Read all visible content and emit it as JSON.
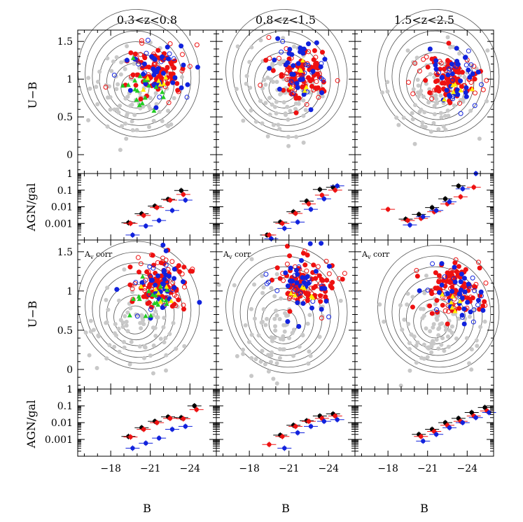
{
  "figure": {
    "column_titles": [
      "0.3<z<0.8",
      "0.8<z<1.5",
      "1.5<z<2.5"
    ],
    "color_top_ylabel": "U−B",
    "ratio_top_ylabel": "AGN/gal",
    "color_bottom_ylabel": "U−B",
    "ratio_bottom_ylabel": "AGN/gal",
    "xlabel": "B",
    "av_corr_label": "A",
    "av_corr_sub": "v",
    "av_corr_suffix": " corr"
  },
  "colors": {
    "black": "#000000",
    "red": "#ee1111",
    "blue": "#1122dd",
    "green": "#22cc22",
    "yellow": "#ffee00",
    "gray": "#c8c8c8",
    "contour": "#555555"
  },
  "chart_data": [
    {
      "type": "scatter",
      "row": "color-top",
      "ylabel": "U−B",
      "xlim": [
        -15.5,
        -26
      ],
      "ylim": [
        -0.25,
        1.65
      ],
      "xticks": [
        -18,
        -21,
        -24
      ],
      "yticks": [
        0,
        0.5,
        1,
        1.5
      ],
      "series": [
        {
          "name": "galaxies (gray)"
        },
        {
          "name": "AGN (red)"
        },
        {
          "name": "AGN (blue)"
        },
        {
          "name": "green"
        },
        {
          "name": "yellow"
        }
      ],
      "panels": [
        {
          "title": "0.3<z<0.8",
          "gal_center": [
            -19.8,
            0.85
          ],
          "agn_center": [
            -21.5,
            1.1
          ]
        },
        {
          "title": "0.8<z<1.5",
          "gal_center": [
            -20.5,
            0.85
          ],
          "agn_center": [
            -22.0,
            1.1
          ]
        },
        {
          "title": "1.5<z<2.5",
          "gal_center": [
            -21.5,
            0.85
          ],
          "agn_center": [
            -22.8,
            1.0
          ]
        }
      ]
    },
    {
      "type": "line",
      "row": "ratio-top",
      "ylabel": "AGN/gal",
      "yscale": "log",
      "xlim": [
        -15.5,
        -26
      ],
      "ylim": [
        0.0001,
        1
      ],
      "ytick_labels": [
        "1",
        "0.1",
        "0.01",
        "0.001"
      ],
      "panels": [
        {
          "x": [
            -19.5,
            -20.5,
            -21.5,
            -22.5,
            -23.5
          ],
          "series": [
            {
              "name": "black",
              "values": [
                0.0011,
                0.0038,
                0.011,
                0.028,
                0.095
              ]
            },
            {
              "name": "red",
              "values": [
                0.001,
                0.003,
                0.009,
                0.025,
                0.055
              ]
            },
            {
              "name": "blue",
              "values": [
                0.0002,
                0.0007,
                0.0015,
                0.006,
                0.025
              ]
            }
          ]
        },
        {
          "x": [
            -19.5,
            -20.5,
            -21.5,
            -22.5,
            -23.5,
            -24.5
          ],
          "series": [
            {
              "name": "black",
              "values": [
                0.0002,
                0.0012,
                0.005,
                0.022,
                0.11,
                0.15
              ]
            },
            {
              "name": "red",
              "values": [
                0.0002,
                0.001,
                0.004,
                0.015,
                0.05,
                0.1
              ]
            },
            {
              "name": "blue",
              "values": [
                0.00012,
                0.0005,
                0.0012,
                0.007,
                0.03,
                0.18
              ]
            }
          ]
        },
        {
          "x": [
            -18.0,
            -19.5,
            -20.5,
            -21.5,
            -22.5,
            -23.5,
            -24.5
          ],
          "series": [
            {
              "name": "black",
              "values": [
                null,
                0.0018,
                0.0035,
                0.009,
                0.03,
                0.18,
                null
              ]
            },
            {
              "name": "red",
              "values": [
                0.007,
                0.0015,
                0.002,
                0.005,
                0.015,
                0.04,
                0.15
              ]
            },
            {
              "name": "blue",
              "values": [
                null,
                0.0008,
                0.0025,
                0.006,
                0.02,
                0.12,
                1.0
              ]
            }
          ]
        }
      ]
    },
    {
      "type": "scatter",
      "row": "color-bottom",
      "ylabel": "U−B",
      "annotation": "Av corr",
      "xlim": [
        -15.5,
        -26
      ],
      "ylim": [
        -0.25,
        1.65
      ],
      "xticks": [
        -18,
        -21,
        -24
      ],
      "yticks": [
        0,
        0.5,
        1,
        1.5
      ],
      "panels": [
        {
          "gal_center": [
            -19.8,
            0.6
          ],
          "agn_center": [
            -21.8,
            1.1
          ]
        },
        {
          "gal_center": [
            -20.5,
            0.55
          ],
          "agn_center": [
            -22.2,
            1.1
          ]
        },
        {
          "gal_center": [
            -21.5,
            0.55
          ],
          "agn_center": [
            -23.0,
            1.0
          ]
        }
      ]
    },
    {
      "type": "line",
      "row": "ratio-bottom",
      "ylabel": "AGN/gal",
      "yscale": "log",
      "xlim": [
        -15.5,
        -26
      ],
      "ylim": [
        0.0001,
        1
      ],
      "xlabel": "B",
      "xticks": [
        -18,
        -21,
        -24
      ],
      "ytick_labels": [
        "1",
        "0.1",
        "0.01",
        "0.001"
      ],
      "panels": [
        {
          "x": [
            -19.5,
            -20.5,
            -21.5,
            -22.5,
            -23.5,
            -24.5
          ],
          "series": [
            {
              "name": "black",
              "values": [
                0.0015,
                0.005,
                0.012,
                0.022,
                0.02,
                0.1
              ]
            },
            {
              "name": "red",
              "values": [
                0.0014,
                0.004,
                0.01,
                0.018,
                0.017,
                0.06
              ]
            },
            {
              "name": "blue",
              "values": [
                0.0003,
                0.0006,
                0.0012,
                0.004,
                0.006,
                null
              ]
            }
          ]
        },
        {
          "x": [
            -19.5,
            -20.5,
            -21.5,
            -22.5,
            -23.5,
            -24.5
          ],
          "series": [
            {
              "name": "black",
              "values": [
                null,
                0.0018,
                0.007,
                0.013,
                0.025,
                0.033
              ]
            },
            {
              "name": "red",
              "values": [
                0.0005,
                0.0015,
                0.006,
                0.012,
                0.018,
                0.025
              ]
            },
            {
              "name": "blue",
              "values": [
                null,
                0.0003,
                0.0025,
                0.006,
                0.012,
                0.015
              ]
            }
          ]
        },
        {
          "x": [
            -20.5,
            -21.5,
            -22.5,
            -23.5,
            -24.5,
            -25.5
          ],
          "series": [
            {
              "name": "black",
              "values": [
                0.002,
                0.004,
                0.01,
                0.018,
                0.04,
                0.08
              ]
            },
            {
              "name": "red",
              "values": [
                0.0015,
                0.003,
                0.007,
                0.012,
                0.025,
                0.05
              ]
            },
            {
              "name": "blue",
              "values": [
                0.0008,
                0.002,
                0.005,
                0.01,
                0.02,
                0.04
              ]
            }
          ]
        }
      ]
    }
  ]
}
